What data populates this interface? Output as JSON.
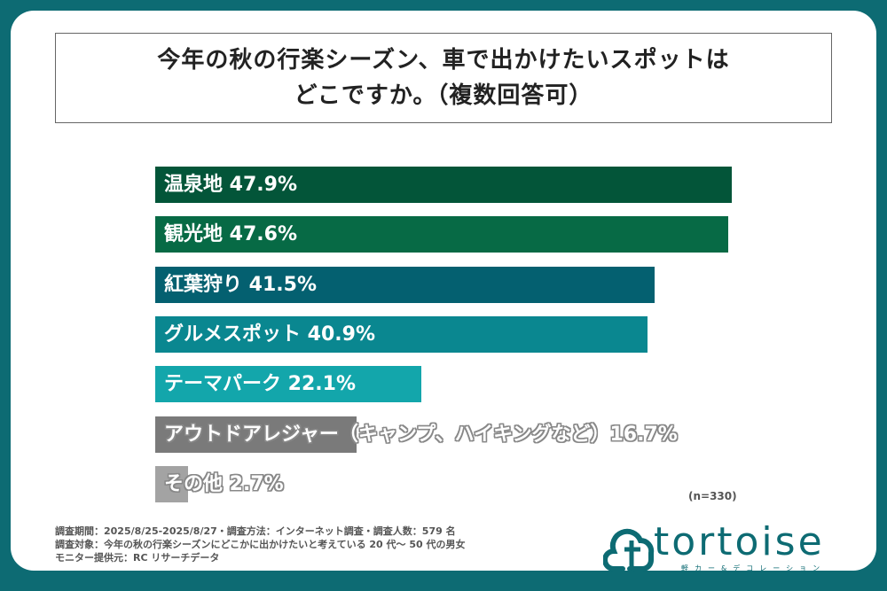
{
  "title_lines": [
    "今年の秋の行楽シーズン、車で出かけたいスポットは",
    "どこですか。（複数回答可）"
  ],
  "chart_data": {
    "type": "bar",
    "orientation": "horizontal",
    "title": "今年の秋の行楽シーズン、車で出かけたいスポットは どこですか。（複数回答可）",
    "categories": [
      "温泉地",
      "観光地",
      "紅葉狩り",
      "グルメスポット",
      "テーマパーク",
      "アウトドアレジャー（キャンプ、ハイキングなど）",
      "その他"
    ],
    "values": [
      47.9,
      47.6,
      41.5,
      40.9,
      22.1,
      16.7,
      2.7
    ],
    "labels": [
      "温泉地 47.9%",
      "観光地 47.6%",
      "紅葉狩り 41.5%",
      "グルメスポット 40.9%",
      "テーマパーク 22.1%",
      "アウトドアレジャー（キャンプ、ハイキングなど）16.7%",
      "その他 2.7%"
    ],
    "colors": [
      "#035539",
      "#076a45",
      "#046070",
      "#0a8790",
      "#13a6ab",
      "#7a7a7a",
      "#a3a3a3"
    ],
    "unit": "%",
    "grid": false
  },
  "sample_size": "(n=330)",
  "notes": [
    "調査期間：2025/8/25-2025/8/27・調査方法：インターネット調査・調査人数：579 名",
    "調査対象：今年の秋の行楽シーズンにどこかに出かけたいと考えている 20 代～ 50 代の男女",
    "モニター提供元：RC リサーチデータ"
  ],
  "logo": {
    "text": "tortoise",
    "sub": "軽カー&デコレーション"
  },
  "colors": {
    "background": "#0d6b73",
    "card": "#ffffff"
  }
}
